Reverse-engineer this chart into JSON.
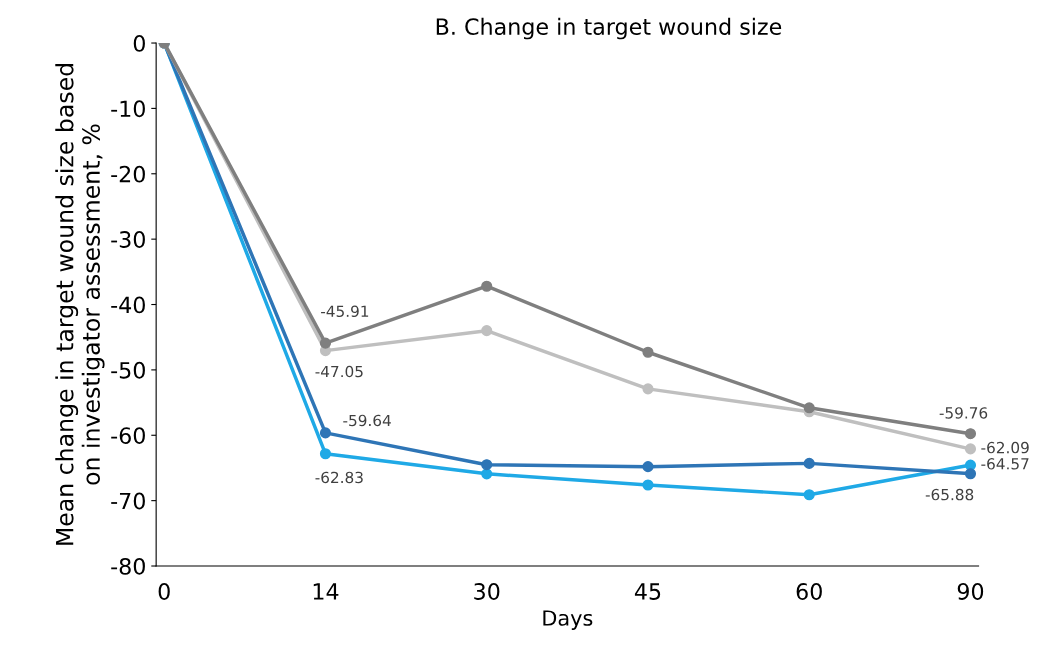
{
  "chart_data": {
    "type": "line",
    "title": "B. Change in target wound size",
    "xlabel": "Days",
    "ylabel": "Mean change in target wound size based\non investigator assessment, %",
    "categories": [
      "0",
      "14",
      "30",
      "45",
      "60",
      "90"
    ],
    "series": [
      {
        "color": "#7f7f7f",
        "values": [
          0,
          -45.91,
          -37.2,
          -47.3,
          -55.8,
          -59.76
        ],
        "value_labels": [
          null,
          "-45.91",
          null,
          null,
          null,
          "-59.76"
        ]
      },
      {
        "color": "#bfbfbf",
        "values": [
          0,
          -47.05,
          -44.0,
          -52.9,
          -56.4,
          -62.09
        ],
        "value_labels": [
          null,
          "-47.05",
          null,
          null,
          null,
          "-62.09"
        ]
      },
      {
        "color": "#2e75b6",
        "values": [
          0,
          -59.64,
          -64.5,
          -64.8,
          -64.3,
          -65.88
        ],
        "value_labels": [
          null,
          "-59.64",
          null,
          null,
          null,
          "-65.88"
        ]
      },
      {
        "color": "#1fa9e6",
        "values": [
          0,
          -62.83,
          -65.9,
          -67.6,
          -69.1,
          -64.57
        ],
        "value_labels": [
          null,
          "-62.83",
          null,
          null,
          null,
          "-64.57"
        ]
      }
    ],
    "ylim": [
      -80,
      0
    ],
    "yticks": [
      {
        "value": -80,
        "label": "-80"
      },
      {
        "value": -70,
        "label": "-70"
      },
      {
        "value": -60,
        "label": "-60"
      },
      {
        "value": -50,
        "label": "-50"
      },
      {
        "value": -40,
        "label": "-40"
      },
      {
        "value": -30,
        "label": "-30"
      },
      {
        "value": -20,
        "label": "-20"
      },
      {
        "value": -10,
        "label": "-10"
      },
      0
    ],
    "grid": false,
    "legend": false,
    "marker": "circle",
    "line_style": "solid"
  }
}
